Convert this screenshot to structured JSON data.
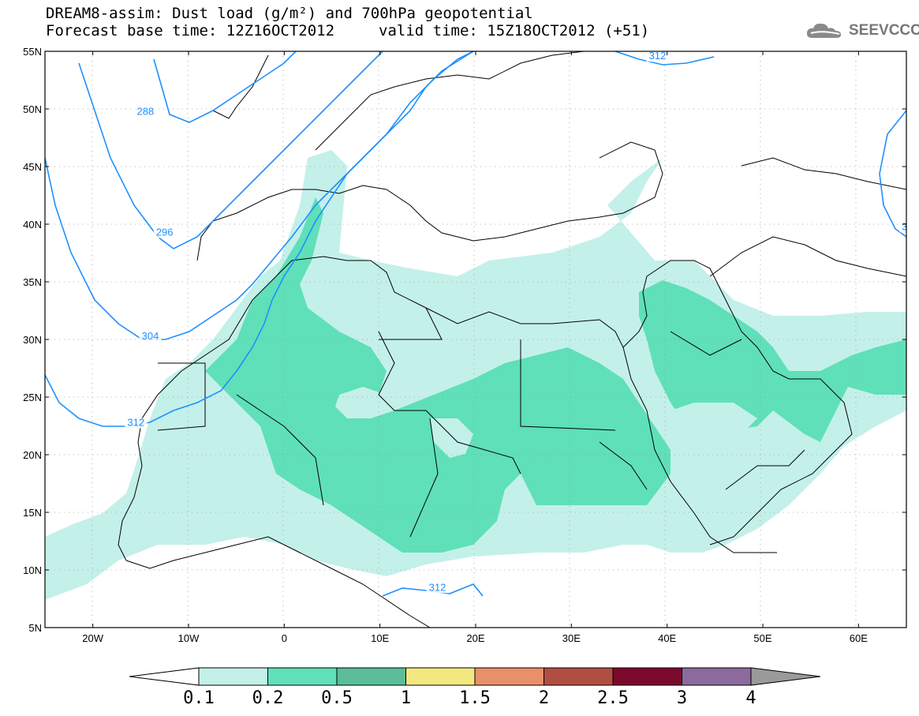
{
  "header": {
    "title_line1": "DREAM8-assim: Dust load (g/m²) and 700hPa geopotential",
    "title_line2_base": "Forecast base time: 12Z16OCT2012",
    "title_line2_valid": "valid time: 15Z18OCT2012 (+51)",
    "logo_text": "SEEVCCC",
    "logo_icon": "cloud-logo-icon"
  },
  "map": {
    "extent": {
      "lon_min": -25,
      "lon_max": 65,
      "lat_min": 5,
      "lat_max": 55
    },
    "lat_ticks": [
      "5N",
      "10N",
      "15N",
      "20N",
      "25N",
      "30N",
      "35N",
      "40N",
      "45N",
      "50N",
      "55N"
    ],
    "lat_values": [
      5,
      10,
      15,
      20,
      25,
      30,
      35,
      40,
      45,
      50,
      55
    ],
    "lon_ticks": [
      "20W",
      "10W",
      "0",
      "10E",
      "20E",
      "30E",
      "40E",
      "50E",
      "60E"
    ],
    "lon_values": [
      -20,
      -10,
      0,
      10,
      20,
      30,
      40,
      50,
      60
    ],
    "grid": true,
    "contour_color": "#1e90ff",
    "contour_labels": [
      {
        "text": "288",
        "lon": -14.5,
        "lat": 49.5
      },
      {
        "text": "296",
        "lon": -12.5,
        "lat": 39.0
      },
      {
        "text": "304",
        "lon": -14.0,
        "lat": 30.0
      },
      {
        "text": "312",
        "lon": -15.5,
        "lat": 22.5
      },
      {
        "text": "312",
        "lon": 16.0,
        "lat": 8.2
      },
      {
        "text": "312",
        "lon": 39.0,
        "lat": 54.3
      },
      {
        "text": "3",
        "lon": 64.8,
        "lat": 39.5
      }
    ]
  },
  "colorbar": {
    "labels": [
      "0.1",
      "0.2",
      "0.5",
      "1",
      "1.5",
      "2",
      "2.5",
      "3",
      "4"
    ],
    "colors": [
      "#c4f0ea",
      "#5fe0b8",
      "#5bbe99",
      "#f3e780",
      "#e8906a",
      "#b04e42",
      "#7b0a2d",
      "#8c6a9c",
      "#9a9a9a"
    ],
    "low_arrow_color": "#ffffff",
    "high_arrow_color": "#9a9a9a"
  }
}
